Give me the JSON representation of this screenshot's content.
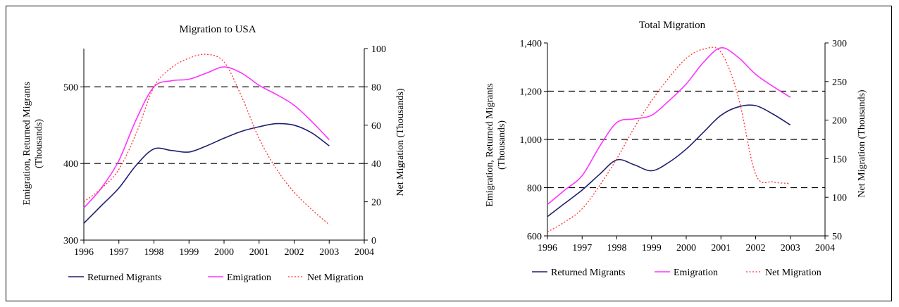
{
  "chart_data": [
    {
      "type": "line",
      "title": "Migration to USA",
      "xlabel": "",
      "ylabel": "Emigration, Returned Migrants (Thousands)",
      "ylabel_lines": [
        "Emigration, Returned Migrants",
        "(Thousands)"
      ],
      "y2label": "Net Migration (Thousands)",
      "xlim": [
        1996,
        2004
      ],
      "ylim": [
        300,
        550
      ],
      "y2lim": [
        0,
        100
      ],
      "x_ticks": [
        1996,
        1997,
        1998,
        1999,
        2000,
        2001,
        2002,
        2003,
        2004
      ],
      "x_tick_labels": [
        "1996",
        "1997",
        "1998",
        "1999",
        "2000",
        "2001",
        "2002",
        "2003",
        "2004"
      ],
      "y_ticks": [
        300,
        400,
        500
      ],
      "y_tick_labels": [
        "300",
        "400",
        "500"
      ],
      "y2_ticks": [
        0,
        20,
        40,
        60,
        80,
        100
      ],
      "y2_tick_labels": [
        "0",
        "20",
        "40",
        "60",
        "80",
        "100"
      ],
      "gridlines_y": [
        400,
        500
      ],
      "legend": "bottom",
      "series": [
        {
          "name": "Returned Migrants",
          "axis": "left",
          "color": "#1f1f6e",
          "style": "solid",
          "x": [
            1996,
            1996.5,
            1997,
            1997.5,
            1998,
            1998.5,
            1999,
            1999.5,
            2000,
            2000.5,
            2001,
            2001.5,
            2002,
            2002.5,
            2003
          ],
          "y": [
            322,
            345,
            368,
            398,
            419,
            417,
            415,
            423,
            433,
            442,
            448,
            452,
            450,
            440,
            423
          ]
        },
        {
          "name": "Emigration",
          "axis": "left",
          "color": "#ff33ff",
          "style": "solid",
          "x": [
            1996,
            1996.5,
            1997,
            1997.5,
            1998,
            1998.5,
            1999,
            1999.5,
            2000,
            2000.5,
            2001,
            2001.5,
            2002,
            2002.5,
            2003
          ],
          "y": [
            342,
            368,
            404,
            458,
            500,
            508,
            510,
            518,
            526,
            518,
            502,
            490,
            476,
            455,
            431
          ]
        },
        {
          "name": "Net Migration",
          "axis": "right",
          "color": "#ff3030",
          "style": "dotted",
          "x": [
            1996,
            1996.5,
            1997,
            1997.5,
            1998,
            1998.5,
            1999,
            1999.5,
            2000,
            2000.5,
            2001,
            2001.5,
            2002,
            2002.5,
            2003
          ],
          "y": [
            20,
            27,
            37,
            56,
            80,
            90,
            95,
            97,
            93,
            75,
            53,
            37,
            25,
            16,
            8
          ]
        }
      ]
    },
    {
      "type": "line",
      "title": "Total Migration",
      "xlabel": "",
      "ylabel": "Emigration, Returned Migrants (Thousands)",
      "ylabel_lines": [
        "Emigration, Returned Migrants",
        "(Thousands)"
      ],
      "y2label": "Net Migration (Thousands)",
      "xlim": [
        1996,
        2004
      ],
      "ylim": [
        600,
        1400
      ],
      "y2lim": [
        50,
        300
      ],
      "x_ticks": [
        1996,
        1997,
        1998,
        1999,
        2000,
        2001,
        2002,
        2003,
        2004
      ],
      "x_tick_labels": [
        "1996",
        "1997",
        "1998",
        "1999",
        "2000",
        "2001",
        "2002",
        "2003",
        "2004"
      ],
      "y_ticks": [
        600,
        800,
        1000,
        1200,
        1400
      ],
      "y_tick_labels": [
        "600",
        "800",
        "1,000",
        "1,200",
        "1,400"
      ],
      "y2_ticks": [
        50,
        100,
        150,
        200,
        250,
        300
      ],
      "y2_tick_labels": [
        "50",
        "100",
        "150",
        "200",
        "250",
        "300"
      ],
      "gridlines_y": [
        800,
        1000,
        1200
      ],
      "legend": "bottom",
      "series": [
        {
          "name": "Returned Migrants",
          "axis": "left",
          "color": "#1f1f6e",
          "style": "solid",
          "x": [
            1996,
            1996.5,
            1997,
            1997.5,
            1998,
            1998.5,
            1999,
            1999.5,
            2000,
            2000.5,
            2001,
            2001.5,
            2002,
            2002.5,
            2003
          ],
          "y": [
            680,
            735,
            790,
            855,
            915,
            895,
            870,
            905,
            960,
            1030,
            1100,
            1135,
            1140,
            1105,
            1060
          ]
        },
        {
          "name": "Emigration",
          "axis": "left",
          "color": "#ff33ff",
          "style": "solid",
          "x": [
            1996,
            1996.5,
            1997,
            1997.5,
            1998,
            1998.5,
            1999,
            1999.5,
            2000,
            2000.5,
            2001,
            2001.5,
            2002,
            2002.5,
            2003
          ],
          "y": [
            730,
            790,
            850,
            970,
            1070,
            1085,
            1100,
            1160,
            1230,
            1320,
            1380,
            1340,
            1270,
            1220,
            1175
          ]
        },
        {
          "name": "Net Migration",
          "axis": "right",
          "color": "#ff3030",
          "style": "dotted",
          "x": [
            1996,
            1996.5,
            1997,
            1997.5,
            1998,
            1998.5,
            1999,
            1999.5,
            2000,
            2000.5,
            2001,
            2001.5,
            2002,
            2002.5,
            2003
          ],
          "y": [
            55,
            68,
            85,
            115,
            150,
            190,
            225,
            255,
            280,
            292,
            288,
            230,
            130,
            120,
            118
          ]
        }
      ]
    }
  ]
}
